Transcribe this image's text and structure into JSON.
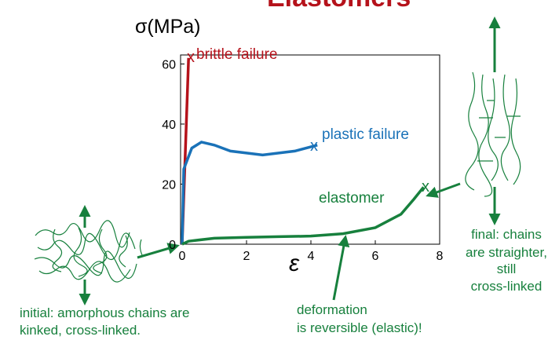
{
  "chart_data": {
    "type": "line",
    "title": "Elastomers",
    "y_label": "σ(MPa)",
    "x_label": "ε",
    "xlim": [
      0,
      8
    ],
    "ylim": [
      0,
      63
    ],
    "xticks": [
      0,
      2,
      4,
      6,
      8
    ],
    "yticks": [
      0,
      20,
      40,
      60
    ],
    "grid": false,
    "series": [
      {
        "name": "brittle failure",
        "color": "#b5121b",
        "marker_text": "x",
        "x": [
          0,
          0.2
        ],
        "values": [
          0,
          62
        ]
      },
      {
        "name": "plastic failure",
        "color": "#1a72b8",
        "marker_text": "x",
        "x": [
          0,
          0.05,
          0.3,
          0.6,
          1,
          1.5,
          2.5,
          3.5,
          4.2
        ],
        "values": [
          0,
          25,
          32,
          34,
          33,
          31,
          29.7,
          31,
          33
        ]
      },
      {
        "name": "elastomer",
        "color": "#17803d",
        "marker_text": "x",
        "x": [
          0,
          0.2,
          1,
          2,
          3,
          4,
          5,
          6,
          6.8,
          7.2,
          7.5
        ],
        "values": [
          0,
          1,
          2,
          2.3,
          2.5,
          2.7,
          3.5,
          5.5,
          10,
          15,
          19
        ]
      }
    ],
    "notes": [
      [
        "initial:  amorphous chains are",
        "kinked, cross-linked."
      ],
      [
        "deformation",
        "is reversible (elastic)!"
      ],
      [
        "final: chains",
        "are straighter,",
        "still",
        "cross-linked"
      ]
    ]
  }
}
